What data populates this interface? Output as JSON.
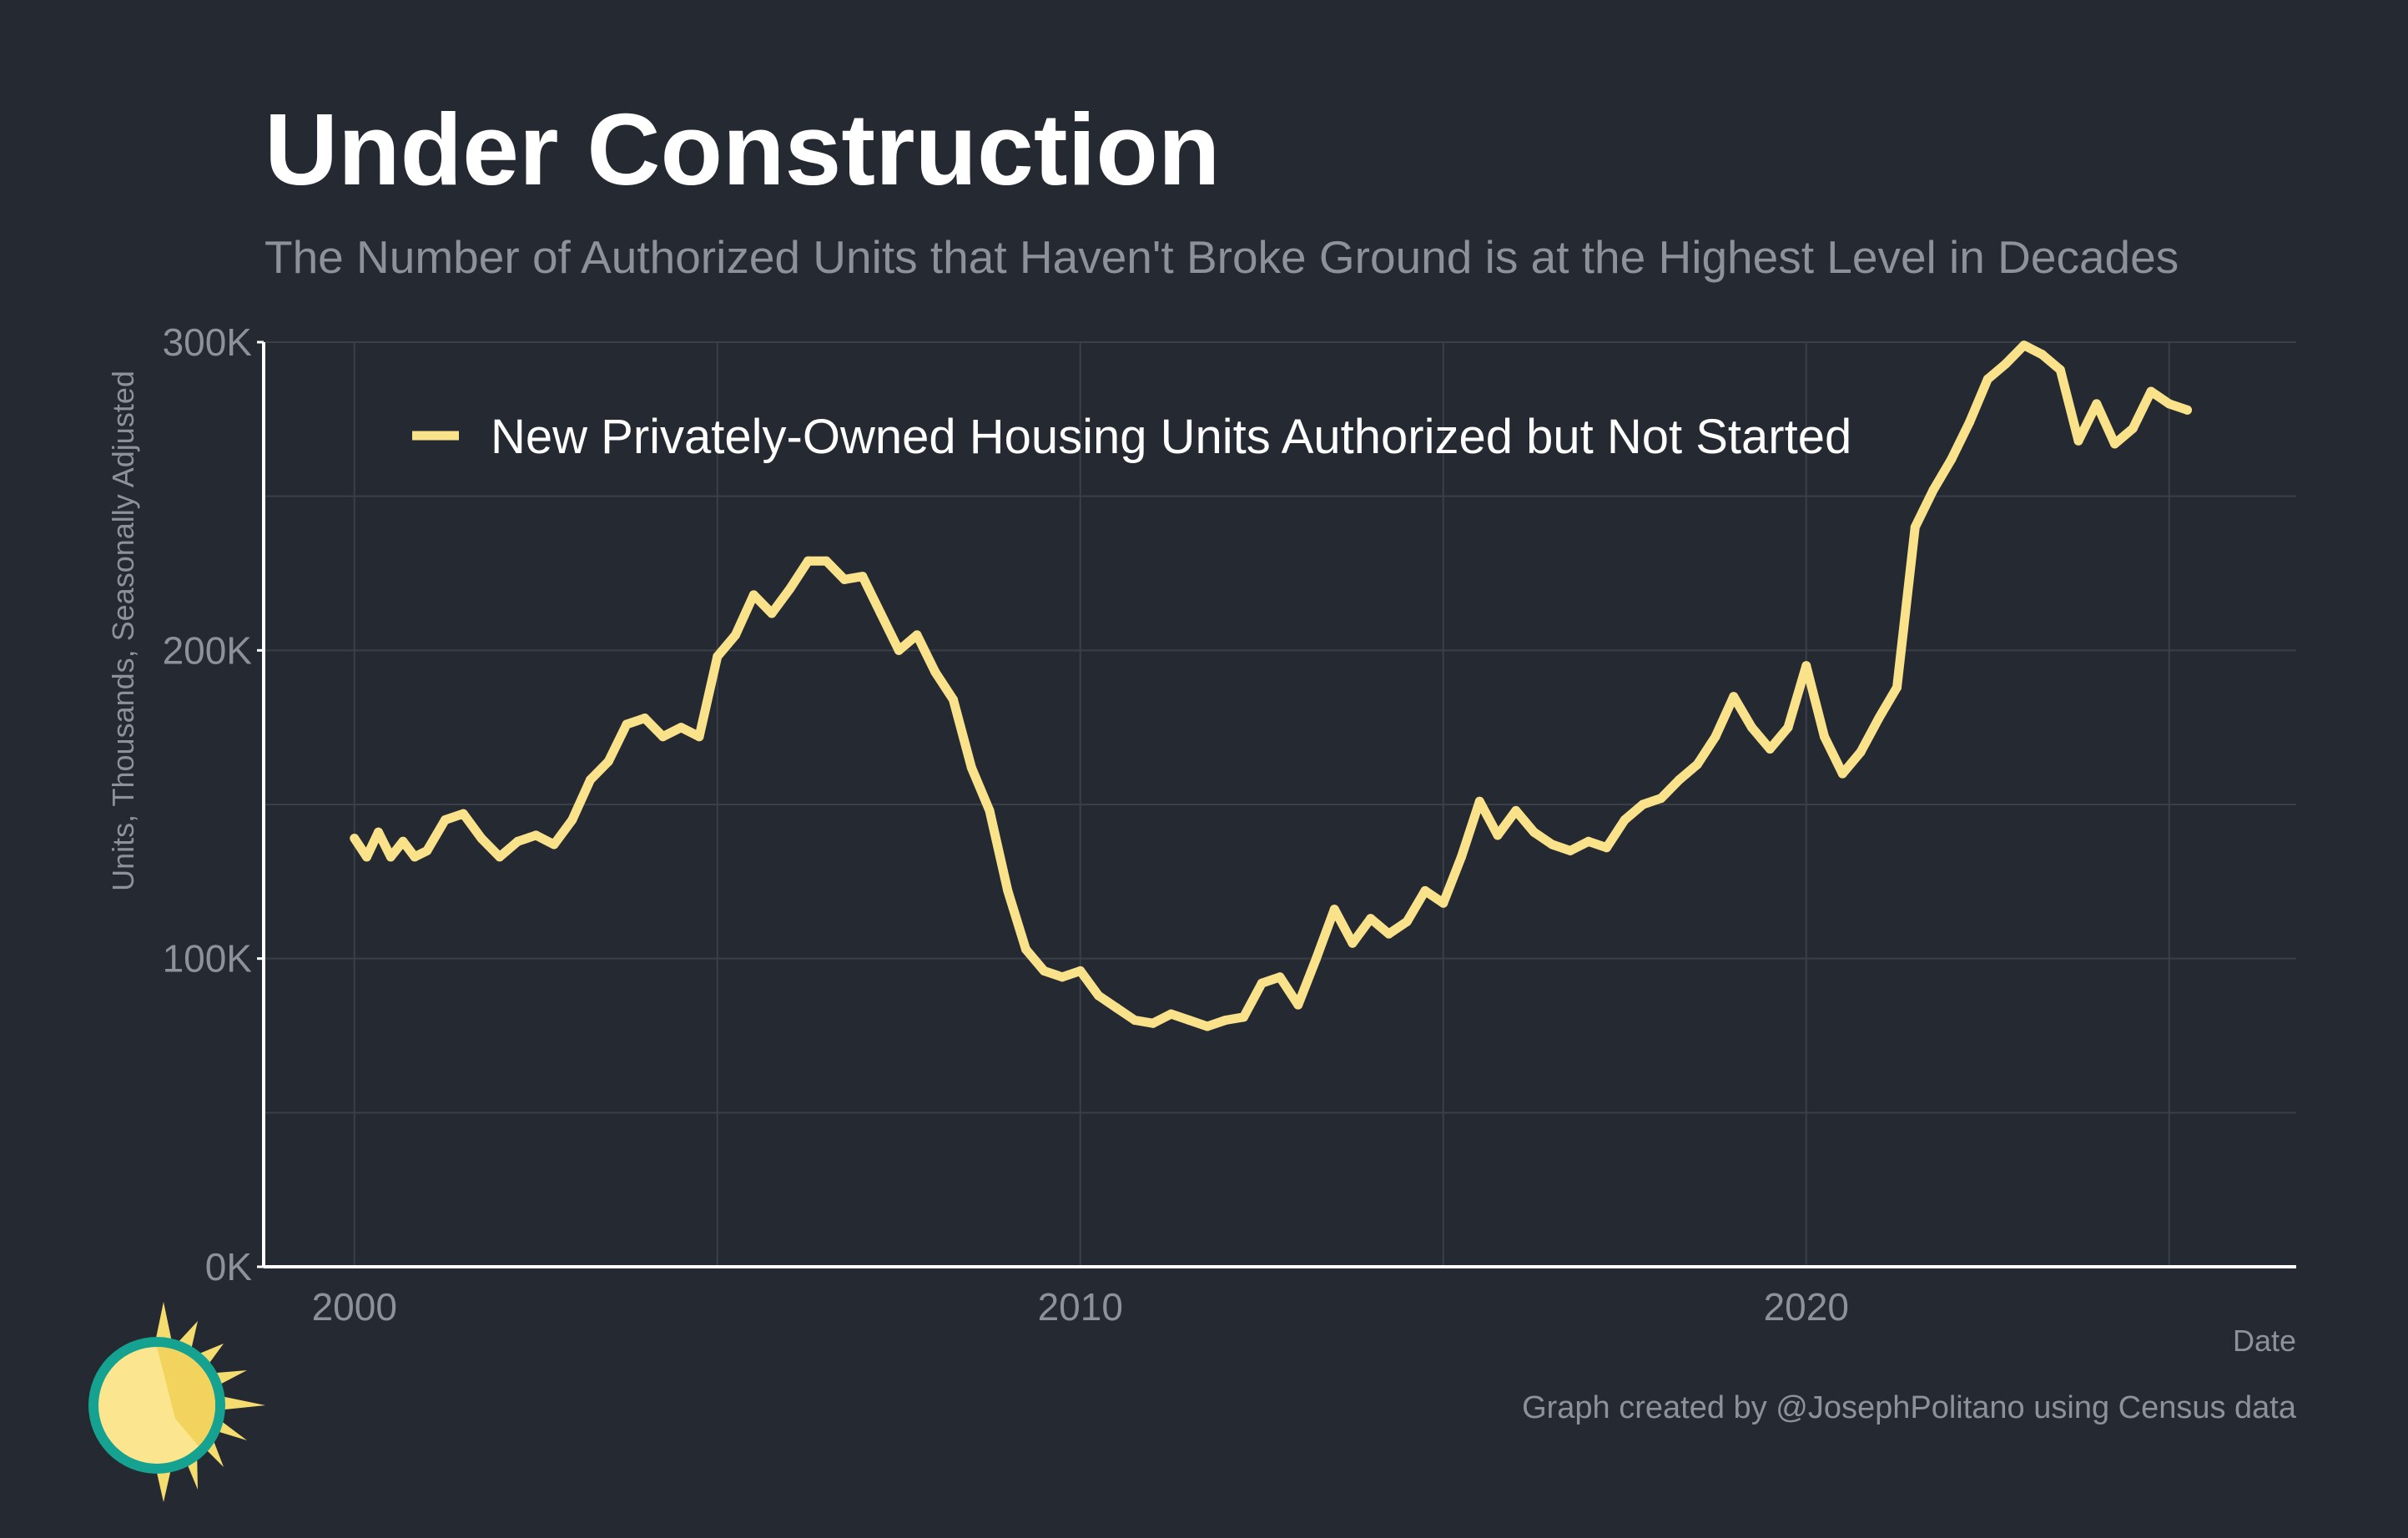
{
  "title": "Under Construction",
  "subtitle": "The Number of Authorized Units that Haven't Broke Ground is at the Highest Level in Decades",
  "credit": "Graph created by @JosephPolitano using Census data",
  "colors": {
    "background": "#252932",
    "line": "#f9e28a",
    "grid": "#3b3f47",
    "axis": "#ffffff",
    "muted_text": "#8d9199",
    "logo_ring": "#16a290",
    "logo_sun": "#f5dc6f"
  },
  "chart_data": {
    "type": "line",
    "title": "Under Construction",
    "subtitle": "The Number of Authorized Units that Haven't Broke Ground is at the Highest Level in Decades",
    "xlabel": "Date",
    "ylabel": "Units, Thousands, Seasonally Adjusted",
    "xlim": [
      1998.75,
      2026.75
    ],
    "ylim": [
      0,
      300
    ],
    "x_ticks": [
      2000,
      2010,
      2020
    ],
    "x_tick_labels": [
      "2000",
      "2010",
      "2020"
    ],
    "y_ticks": [
      0,
      100,
      200,
      300
    ],
    "y_tick_labels": [
      "0K",
      "100K",
      "200K",
      "300K"
    ],
    "grid": true,
    "legend": "top-left inside",
    "series": [
      {
        "name": "New Privately-Owned Housing Units Authorized but Not Started",
        "color": "#f9e28a",
        "x": [
          2000.0,
          2000.17,
          2000.33,
          2000.5,
          2000.67,
          2000.83,
          2001.0,
          2001.25,
          2001.5,
          2001.75,
          2002.0,
          2002.25,
          2002.5,
          2002.75,
          2003.0,
          2003.25,
          2003.5,
          2003.75,
          2004.0,
          2004.25,
          2004.5,
          2004.75,
          2005.0,
          2005.25,
          2005.5,
          2005.75,
          2006.0,
          2006.25,
          2006.5,
          2006.75,
          2007.0,
          2007.25,
          2007.5,
          2007.75,
          2008.0,
          2008.25,
          2008.5,
          2008.75,
          2009.0,
          2009.25,
          2009.5,
          2009.75,
          2010.0,
          2010.25,
          2010.5,
          2010.75,
          2011.0,
          2011.25,
          2011.5,
          2011.75,
          2012.0,
          2012.25,
          2012.5,
          2012.75,
          2013.0,
          2013.25,
          2013.5,
          2013.75,
          2014.0,
          2014.25,
          2014.5,
          2014.75,
          2015.0,
          2015.25,
          2015.5,
          2015.75,
          2016.0,
          2016.25,
          2016.5,
          2016.75,
          2017.0,
          2017.25,
          2017.5,
          2017.75,
          2018.0,
          2018.25,
          2018.5,
          2018.75,
          2019.0,
          2019.25,
          2019.5,
          2019.75,
          2020.0,
          2020.25,
          2020.5,
          2020.75,
          2021.0,
          2021.25,
          2021.5,
          2021.75,
          2022.0,
          2022.25,
          2022.5,
          2022.75,
          2023.0,
          2023.25,
          2023.5,
          2023.75,
          2024.0,
          2024.25,
          2024.5,
          2024.75,
          2025.0,
          2025.25
        ],
        "values": [
          139,
          133,
          141,
          133,
          138,
          133,
          135,
          145,
          147,
          139,
          133,
          138,
          140,
          137,
          145,
          158,
          164,
          176,
          178,
          172,
          175,
          172,
          198,
          205,
          218,
          212,
          220,
          229,
          229,
          223,
          224,
          212,
          200,
          205,
          193,
          184,
          162,
          148,
          122,
          103,
          96,
          94,
          96,
          88,
          84,
          80,
          79,
          82,
          80,
          78,
          80,
          81,
          92,
          94,
          85,
          100,
          116,
          105,
          113,
          108,
          112,
          122,
          118,
          133,
          151,
          140,
          148,
          141,
          137,
          135,
          138,
          136,
          145,
          150,
          152,
          158,
          163,
          172,
          185,
          175,
          168,
          175,
          195,
          172,
          160,
          167,
          178,
          188,
          240,
          252,
          262,
          274,
          288,
          293,
          299,
          296,
          291,
          268,
          280,
          267,
          272,
          284,
          280,
          278
        ]
      }
    ]
  }
}
